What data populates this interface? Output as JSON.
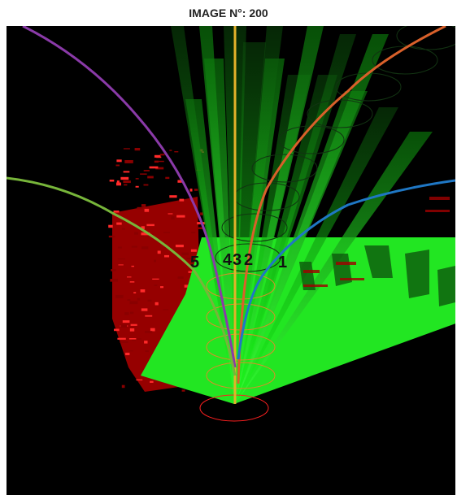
{
  "title": "IMAGE N°: 200",
  "labels": [
    "5",
    "4",
    "3",
    "2",
    "1"
  ],
  "colors": {
    "background": "#000000",
    "sonar_green": "#22ee22",
    "sonar_red": "#cc0000",
    "track_purple": "#8a3aa8",
    "track_olive": "#77b53a",
    "track_orange": "#d9602a",
    "track_blue": "#1f77c4",
    "track_yellow": "#e3b22a",
    "ellipse_dark": "#1a3a1a",
    "ellipse_red": "#ff2020"
  }
}
